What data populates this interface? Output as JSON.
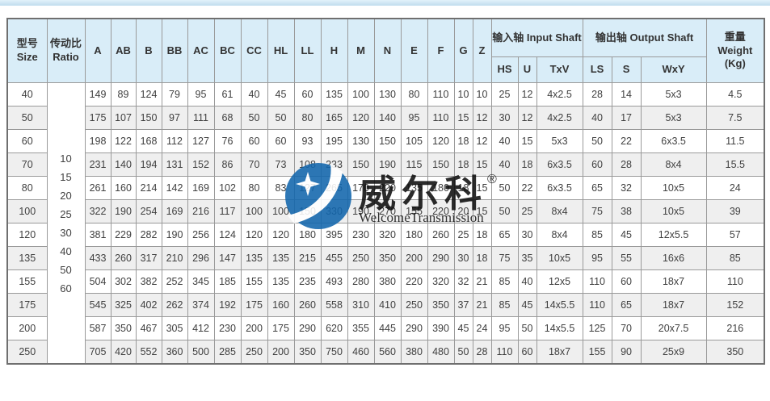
{
  "page": {
    "top_strip_color": "#bfdcee"
  },
  "watermark": {
    "brand_cn": "威尔科",
    "registered": "®",
    "brand_en": "WelcomeTransmission",
    "logo_color": "#1266ad"
  },
  "table": {
    "header": {
      "size": "型号\nSize",
      "ratio": "传动比\nRatio",
      "dim_cols": [
        "A",
        "AB",
        "B",
        "BB",
        "AC",
        "BC",
        "CC",
        "HL",
        "LL",
        "H",
        "M",
        "N",
        "E",
        "F",
        "G",
        "Z"
      ],
      "input_shaft_group": "输入轴 Input Shaft",
      "output_shaft_group": "输出轴 Output Shaft",
      "input_sub": [
        "HS",
        "U",
        "TxV"
      ],
      "output_sub": [
        "LS",
        "S",
        "WxY"
      ],
      "weight": "重量\nWeight\n(Kg)"
    },
    "ratio_values": [
      "10",
      "15",
      "20",
      "25",
      "30",
      "40",
      "50",
      "60"
    ],
    "rows": [
      {
        "size": "40",
        "cells": [
          "149",
          "89",
          "124",
          "79",
          "95",
          "61",
          "40",
          "45",
          "60",
          "135",
          "100",
          "130",
          "80",
          "110",
          "10",
          "10",
          "25",
          "12",
          "4x2.5",
          "28",
          "14",
          "5x3",
          "4.5"
        ]
      },
      {
        "size": "50",
        "cells": [
          "175",
          "107",
          "150",
          "97",
          "111",
          "68",
          "50",
          "50",
          "80",
          "165",
          "120",
          "140",
          "95",
          "110",
          "15",
          "12",
          "30",
          "12",
          "4x2.5",
          "40",
          "17",
          "5x3",
          "7.5"
        ]
      },
      {
        "size": "60",
        "cells": [
          "198",
          "122",
          "168",
          "112",
          "127",
          "76",
          "60",
          "60",
          "93",
          "195",
          "130",
          "150",
          "105",
          "120",
          "18",
          "12",
          "40",
          "15",
          "5x3",
          "50",
          "22",
          "6x3.5",
          "11.5"
        ]
      },
      {
        "size": "70",
        "cells": [
          "231",
          "140",
          "194",
          "131",
          "152",
          "86",
          "70",
          "73",
          "108",
          "233",
          "150",
          "190",
          "115",
          "150",
          "18",
          "15",
          "40",
          "18",
          "6x3.5",
          "60",
          "28",
          "8x4",
          "15.5"
        ]
      },
      {
        "size": "80",
        "cells": [
          "261",
          "160",
          "214",
          "142",
          "169",
          "102",
          "80",
          "83",
          "127",
          "265",
          "170",
          "220",
          "135",
          "180",
          "18",
          "15",
          "50",
          "22",
          "6x3.5",
          "65",
          "32",
          "10x5",
          "24"
        ]
      },
      {
        "size": "100",
        "cells": [
          "322",
          "190",
          "254",
          "169",
          "216",
          "117",
          "100",
          "100",
          "150",
          "330",
          "190",
          "270",
          "155",
          "220",
          "20",
          "15",
          "50",
          "25",
          "8x4",
          "75",
          "38",
          "10x5",
          "39"
        ]
      },
      {
        "size": "120",
        "cells": [
          "381",
          "229",
          "282",
          "190",
          "256",
          "124",
          "120",
          "120",
          "180",
          "395",
          "230",
          "320",
          "180",
          "260",
          "25",
          "18",
          "65",
          "30",
          "8x4",
          "85",
          "45",
          "12x5.5",
          "57"
        ]
      },
      {
        "size": "135",
        "cells": [
          "433",
          "260",
          "317",
          "210",
          "296",
          "147",
          "135",
          "135",
          "215",
          "455",
          "250",
          "350",
          "200",
          "290",
          "30",
          "18",
          "75",
          "35",
          "10x5",
          "95",
          "55",
          "16x6",
          "85"
        ]
      },
      {
        "size": "155",
        "cells": [
          "504",
          "302",
          "382",
          "252",
          "345",
          "185",
          "155",
          "135",
          "235",
          "493",
          "280",
          "380",
          "220",
          "320",
          "32",
          "21",
          "85",
          "40",
          "12x5",
          "110",
          "60",
          "18x7",
          "110"
        ]
      },
      {
        "size": "175",
        "cells": [
          "545",
          "325",
          "402",
          "262",
          "374",
          "192",
          "175",
          "160",
          "260",
          "558",
          "310",
          "410",
          "250",
          "350",
          "37",
          "21",
          "85",
          "45",
          "14x5.5",
          "110",
          "65",
          "18x7",
          "152"
        ]
      },
      {
        "size": "200",
        "cells": [
          "587",
          "350",
          "467",
          "305",
          "412",
          "230",
          "200",
          "175",
          "290",
          "620",
          "355",
          "445",
          "290",
          "390",
          "45",
          "24",
          "95",
          "50",
          "14x5.5",
          "125",
          "70",
          "20x7.5",
          "216"
        ]
      },
      {
        "size": "250",
        "cells": [
          "705",
          "420",
          "552",
          "360",
          "500",
          "285",
          "250",
          "200",
          "350",
          "750",
          "460",
          "560",
          "380",
          "480",
          "50",
          "28",
          "110",
          "60",
          "18x7",
          "155",
          "90",
          "25x9",
          "350"
        ]
      }
    ]
  }
}
